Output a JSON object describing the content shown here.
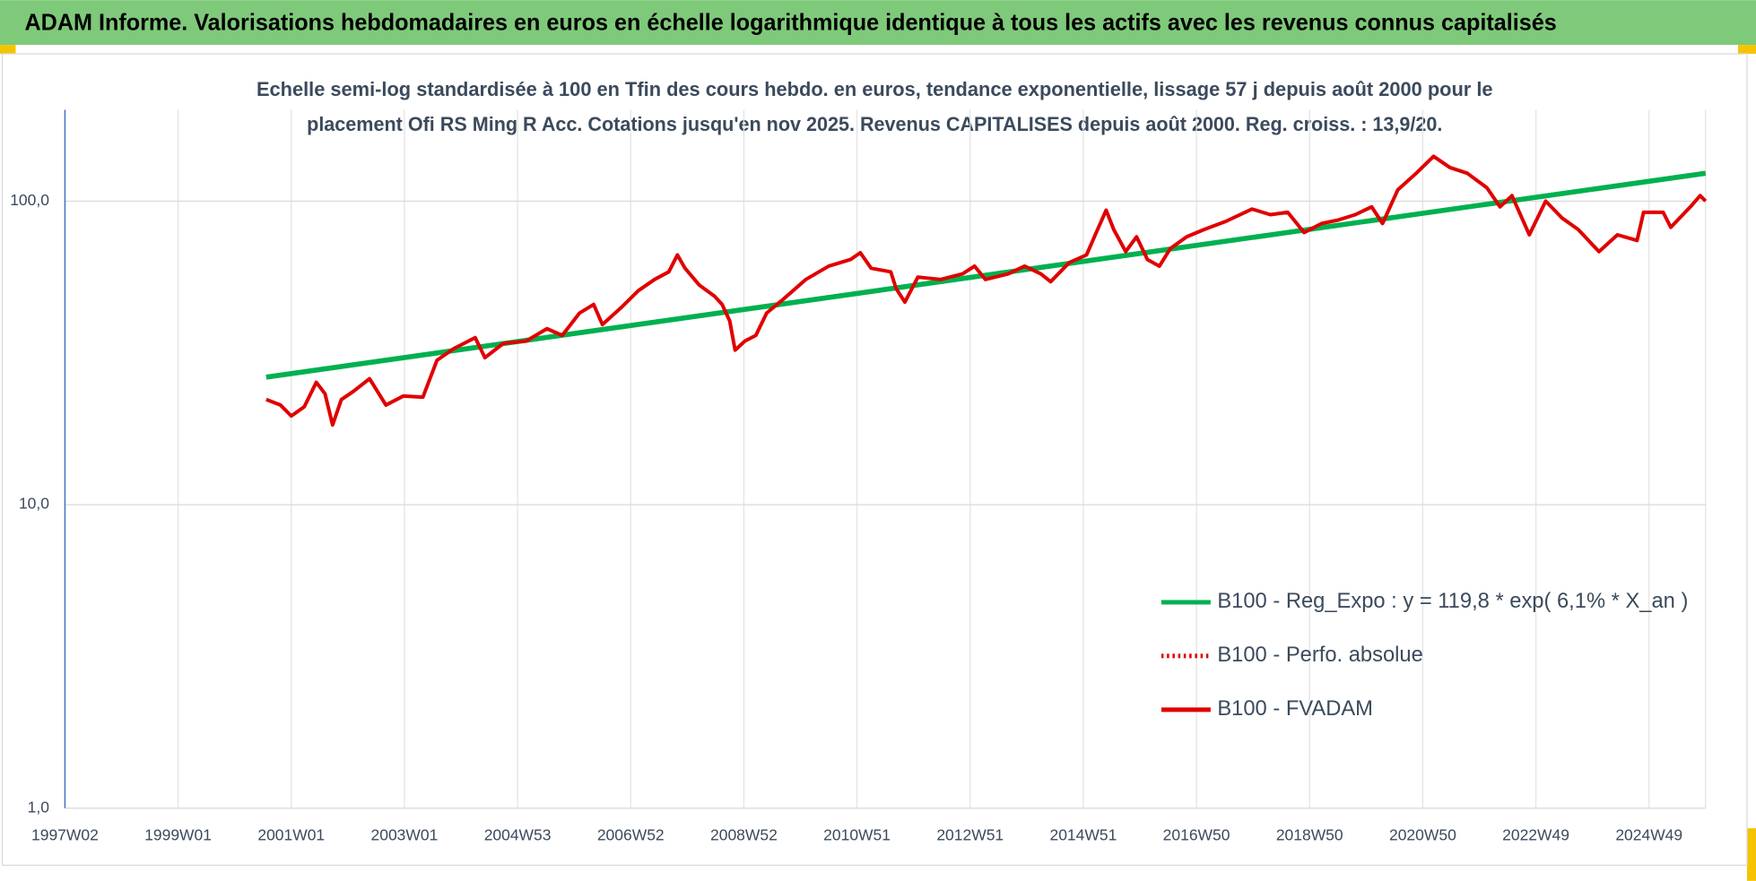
{
  "header": {
    "title": "ADAM Informe. Valorisations hebdomadaires en euros en échelle logarithmique identique à tous les actifs avec les revenus connus capitalisés"
  },
  "chart_data": {
    "type": "line",
    "title": [
      "Echelle semi-log standardisée à 100 en Tfin des cours hebdo. en euros, tendance exponentielle, lissage 57 j depuis août 2000 pour le",
      "placement Ofi RS Ming R Acc. Cotations jusqu'en nov 2025. Revenus CAPITALISES depuis août 2000. Reg. croiss. : 13,9/20."
    ],
    "log_scale": true,
    "grid": true,
    "legend": "right",
    "xlim": [
      0,
      1508
    ],
    "xticks": [
      {
        "value": 0,
        "label": "1997W02"
      },
      {
        "value": 104,
        "label": "1999W01"
      },
      {
        "value": 208,
        "label": "2001W01"
      },
      {
        "value": 312,
        "label": "2003W01"
      },
      {
        "value": 416,
        "label": "2004W53"
      },
      {
        "value": 520,
        "label": "2006W52"
      },
      {
        "value": 624,
        "label": "2008W52"
      },
      {
        "value": 728,
        "label": "2010W51"
      },
      {
        "value": 832,
        "label": "2012W51"
      },
      {
        "value": 936,
        "label": "2014W51"
      },
      {
        "value": 1040,
        "label": "2016W50"
      },
      {
        "value": 1144,
        "label": "2018W50"
      },
      {
        "value": 1248,
        "label": "2020W50"
      },
      {
        "value": 1352,
        "label": "2022W49"
      },
      {
        "value": 1456,
        "label": "2024W49"
      }
    ],
    "ylim": [
      1,
      200
    ],
    "yticks": [
      {
        "value": 1,
        "label": "1,0"
      },
      {
        "value": 10,
        "label": "10,0"
      },
      {
        "value": 100,
        "label": "100,0"
      }
    ],
    "series": [
      {
        "name": "B100 - Reg_Expo : y = 119,8 * exp( 6,1% *  X_an )",
        "color": "#00b050",
        "style": "solid",
        "x": [
          185,
          1508
        ],
        "values": [
          26.3,
          123.6
        ]
      },
      {
        "name": "B100 - Perfo. absolue",
        "color": "#e00000",
        "style": "dotted",
        "x": [],
        "values": []
      },
      {
        "name": "B100 - FVADAM",
        "color": "#e00000",
        "style": "solid",
        "x": [
          185,
          198,
          208,
          220,
          231,
          239,
          246,
          254,
          265,
          280,
          295,
          311,
          329,
          342,
          357,
          377,
          386,
          403,
          424,
          443,
          457,
          473,
          486,
          494,
          511,
          527,
          542,
          555,
          563,
          570,
          583,
          597,
          604,
          611,
          616,
          625,
          635,
          645,
          661,
          681,
          702,
          722,
          731,
          741,
          759,
          764,
          772,
          784,
          805,
          825,
          836,
          846,
          867,
          882,
          897,
          906,
          923,
          939,
          947,
          957,
          964,
          975,
          985,
          995,
          1006,
          1016,
          1031,
          1047,
          1067,
          1091,
          1108,
          1124,
          1139,
          1155,
          1170,
          1186,
          1201,
          1211,
          1225,
          1242,
          1258,
          1273,
          1289,
          1307,
          1319,
          1330,
          1346,
          1361,
          1376,
          1391,
          1410,
          1427,
          1445,
          1451,
          1469,
          1476,
          1494,
          1503,
          1508
        ],
        "values": [
          22.2,
          21.3,
          19.6,
          21,
          25.3,
          23.2,
          18.3,
          22.2,
          23.6,
          26,
          21.3,
          22.8,
          22.6,
          29.9,
          32.6,
          35.5,
          30.5,
          34,
          34.6,
          38,
          36.1,
          42.8,
          45.7,
          39.2,
          44.5,
          50.7,
          55.2,
          58.5,
          66.5,
          60.1,
          52.9,
          48.6,
          45.7,
          40.3,
          32.3,
          34.6,
          36.1,
          42.8,
          47.8,
          55.2,
          61.1,
          64.2,
          67.6,
          60.1,
          58.5,
          51.5,
          46.5,
          56.2,
          55.2,
          57.6,
          61.1,
          55.2,
          57.6,
          61.1,
          57.6,
          54.3,
          62.7,
          66.5,
          77.5,
          93.4,
          80.6,
          68.2,
          76.3,
          64.2,
          61.1,
          69.8,
          76.3,
          80.6,
          85.8,
          94.2,
          90.3,
          91.9,
          78.8,
          84.4,
          86.6,
          90.3,
          95.8,
          84.4,
          108.9,
          123.6,
          140.5,
          129,
          123.6,
          110.7,
          95.8,
          104.3,
          77.5,
          100,
          88,
          80.6,
          68.2,
          77.5,
          74.2,
          91.9,
          91.9,
          82,
          95.8,
          104.3,
          100
        ]
      }
    ]
  }
}
